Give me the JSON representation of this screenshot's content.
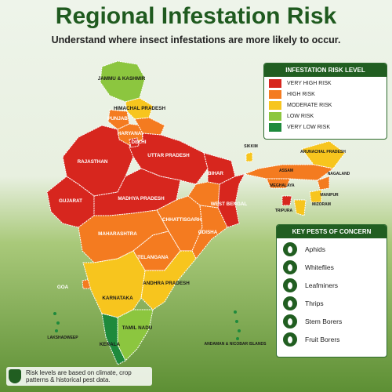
{
  "title": "Regional Infestation Risk",
  "subtitle": "Understand where insect infestations are more likely to occur.",
  "legend": {
    "title": "INFESTATION RISK LEVEL",
    "items": [
      {
        "label": "VERY HIGH RISK",
        "color": "#d7261e"
      },
      {
        "label": "HIGH RISK",
        "color": "#f47b20"
      },
      {
        "label": "MODERATE RISK",
        "color": "#f7c51e"
      },
      {
        "label": "LOW RISK",
        "color": "#8cc63f"
      },
      {
        "label": "VERY LOW RISK",
        "color": "#1e8a3c"
      }
    ]
  },
  "pests": {
    "title": "KEY PESTS OF CONCERN",
    "items": [
      "Aphids",
      "Whiteflies",
      "Leafminers",
      "Thrips",
      "Stem Borers",
      "Fruit Borers"
    ]
  },
  "note": "Risk levels are based on climate, crop patterns & historical pest data.",
  "regions": [
    {
      "name": "JAMMU & KASHMIR",
      "color": "#8cc63f"
    },
    {
      "name": "HIMACHAL PRADESH",
      "color": "#f7c51e"
    },
    {
      "name": "PUNJAB",
      "color": "#f47b20"
    },
    {
      "name": "HARYANA",
      "color": "#f47b20"
    },
    {
      "name": null,
      "color": "#f47b20"
    },
    {
      "name": "RAJASTHAN",
      "color": "#d7261e"
    },
    {
      "name": "UTTAR PRADESH",
      "color": "#d7261e"
    },
    {
      "name": "DELHI",
      "color": "#d7261e"
    },
    {
      "name": "BIHAR",
      "color": "#d7261e"
    },
    {
      "name": "GUJARAT",
      "color": "#d7261e"
    },
    {
      "name": "MADHYA PRADESH",
      "color": "#d7261e"
    },
    {
      "name": "WEST BENGAL",
      "color": "#d7261e"
    },
    {
      "name": null,
      "color": "#f47b20"
    },
    {
      "name": "CHHATTISGARH",
      "color": "#f47b20"
    },
    {
      "name": "ODISHA",
      "color": "#f47b20"
    },
    {
      "name": "MAHARASHTRA",
      "color": "#f47b20"
    },
    {
      "name": "TELANGANA",
      "color": "#f47b20"
    },
    {
      "name": "GOA",
      "color": "#f47b20"
    },
    {
      "name": "ANDHRA PRADESH",
      "color": "#f7c51e"
    },
    {
      "name": "KARNATAKA",
      "color": "#f7c51e"
    },
    {
      "name": "TAMIL NADU",
      "color": "#8cc63f"
    },
    {
      "name": "KERALA",
      "color": "#1e8a3c"
    },
    {
      "name": "SIKKIM",
      "color": "#f7c51e"
    },
    {
      "name": "ARUNACHAL PRADESH",
      "color": "#f7c51e"
    },
    {
      "name": "ASSAM",
      "color": "#f47b20"
    },
    {
      "name": "MEGHALAYA",
      "color": "#f47b20"
    },
    {
      "name": "NAGALAND",
      "color": "#f47b20"
    },
    {
      "name": "MANIPUR",
      "color": "#f7c51e"
    },
    {
      "name": "MIZORAM",
      "color": "#f7c51e"
    },
    {
      "name": "TRIPURA",
      "color": "#d7261e"
    },
    {
      "name": "LAKSHADWEEP",
      "color": "#1e8a3c"
    },
    {
      "name": "ANDAMAN & NICOBAR ISLANDS",
      "color": "#1e8a3c"
    }
  ]
}
